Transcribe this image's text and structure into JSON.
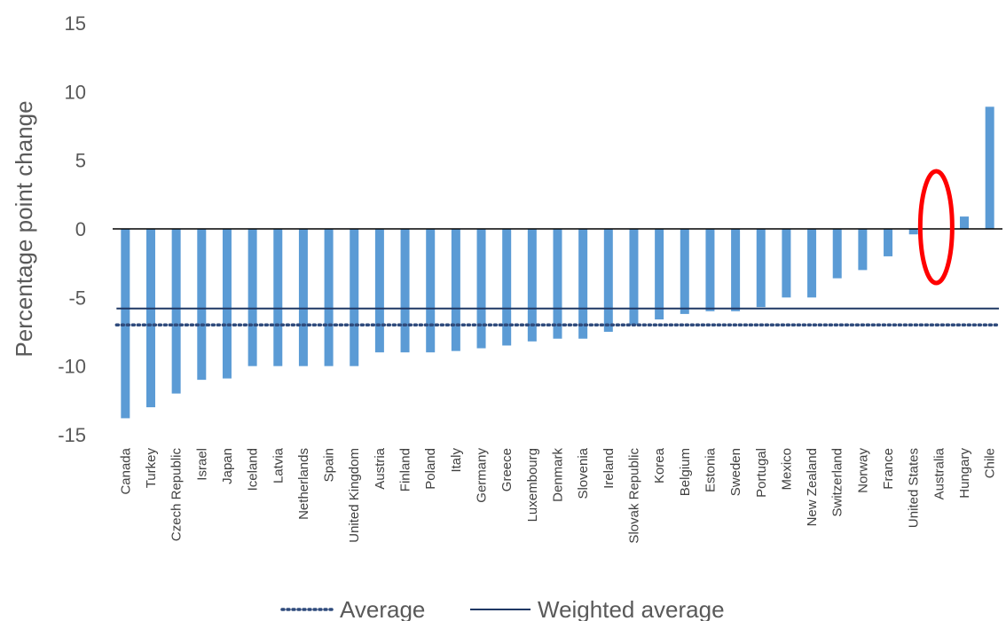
{
  "chart_data": {
    "type": "bar",
    "title": "",
    "xlabel": "",
    "ylabel": "Percentage point change",
    "ylim": [
      -15,
      15
    ],
    "yticks": [
      15,
      10,
      5,
      0,
      -5,
      -10,
      -15
    ],
    "grid": false,
    "legend_position": "bottom",
    "categories": [
      "Canada",
      "Turkey",
      "Czech Republic",
      "Israel",
      "Japan",
      "Iceland",
      "Latvia",
      "Netherlands",
      "Spain",
      "United Kingdom",
      "Austria",
      "Finland",
      "Poland",
      "Italy",
      "Germany",
      "Greece",
      "Luxembourg",
      "Denmark",
      "Slovenia",
      "Ireland",
      "Slovak Republic",
      "Korea",
      "Belgium",
      "Estonia",
      "Sweden",
      "Portugal",
      "Mexico",
      "New Zealand",
      "Switzerland",
      "Norway",
      "France",
      "United States",
      "Australia",
      "Hungary",
      "Chile"
    ],
    "series": [
      {
        "values": [
          -13.8,
          -13.0,
          -12.0,
          -11.0,
          -10.9,
          -10.0,
          -10.0,
          -10.0,
          -10.0,
          -10.0,
          -9.0,
          -9.0,
          -9.0,
          -8.9,
          -8.7,
          -8.5,
          -8.2,
          -8.0,
          -8.0,
          -7.5,
          -7.0,
          -6.6,
          -6.2,
          -6.0,
          -6.0,
          -5.7,
          -5.0,
          -5.0,
          -3.6,
          -3.0,
          -2.0,
          -0.4,
          0.0,
          0.9,
          8.9
        ],
        "color": "#5b9bd5"
      }
    ],
    "reference_lines": [
      {
        "name": "Average",
        "value": -7.0,
        "style": "dotted",
        "color": "#2f4b7c"
      },
      {
        "name": "Weighted average",
        "value": -5.8,
        "style": "solid",
        "color": "#1f3864"
      }
    ],
    "annotations": [
      {
        "type": "ellipse",
        "target": "Australia",
        "color": "#ff0000"
      }
    ]
  },
  "legend": {
    "average_label": "Average",
    "weighted_label": "Weighted average"
  }
}
